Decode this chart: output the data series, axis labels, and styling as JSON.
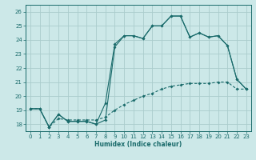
{
  "xlabel": "Humidex (Indice chaleur)",
  "bg_color": "#cce8e8",
  "grid_color": "#aacccc",
  "line_color": "#1a6b6b",
  "xlim": [
    -0.5,
    23.5
  ],
  "ylim": [
    17.5,
    26.5
  ],
  "xticks": [
    0,
    1,
    2,
    3,
    4,
    5,
    6,
    7,
    8,
    9,
    10,
    11,
    12,
    13,
    14,
    15,
    16,
    17,
    18,
    19,
    20,
    21,
    22,
    23
  ],
  "yticks": [
    18,
    19,
    20,
    21,
    22,
    23,
    24,
    25,
    26
  ],
  "line1_x": [
    0,
    1,
    2,
    3,
    4,
    5,
    6,
    7,
    8,
    9,
    10,
    11,
    12,
    13,
    14,
    15,
    16,
    17,
    18,
    19,
    20,
    21,
    22,
    23
  ],
  "line1_y": [
    19.1,
    19.1,
    17.8,
    18.7,
    18.2,
    18.2,
    18.2,
    18.0,
    18.3,
    23.5,
    24.3,
    24.3,
    24.1,
    25.0,
    25.0,
    25.7,
    25.7,
    24.2,
    24.5,
    24.2,
    24.3,
    23.6,
    21.2,
    20.5
  ],
  "line2_x": [
    0,
    1,
    2,
    3,
    4,
    5,
    6,
    7,
    8,
    9,
    10,
    11,
    12,
    13,
    14,
    15,
    16,
    17,
    18,
    19,
    20,
    21,
    22,
    23
  ],
  "line2_y": [
    19.1,
    19.1,
    17.8,
    18.7,
    18.2,
    18.2,
    18.2,
    18.0,
    19.5,
    23.7,
    24.3,
    24.3,
    24.1,
    25.0,
    25.0,
    25.7,
    25.7,
    24.2,
    24.5,
    24.2,
    24.3,
    23.6,
    21.2,
    20.5
  ],
  "line3_x": [
    0,
    1,
    2,
    3,
    4,
    5,
    6,
    7,
    8,
    9,
    10,
    11,
    12,
    13,
    14,
    15,
    16,
    17,
    18,
    19,
    20,
    21,
    22,
    23
  ],
  "line3_y": [
    19.1,
    19.1,
    17.8,
    18.4,
    18.3,
    18.3,
    18.3,
    18.3,
    18.5,
    19.0,
    19.4,
    19.7,
    20.0,
    20.2,
    20.5,
    20.7,
    20.8,
    20.9,
    20.9,
    20.9,
    21.0,
    21.0,
    20.5,
    20.5
  ]
}
